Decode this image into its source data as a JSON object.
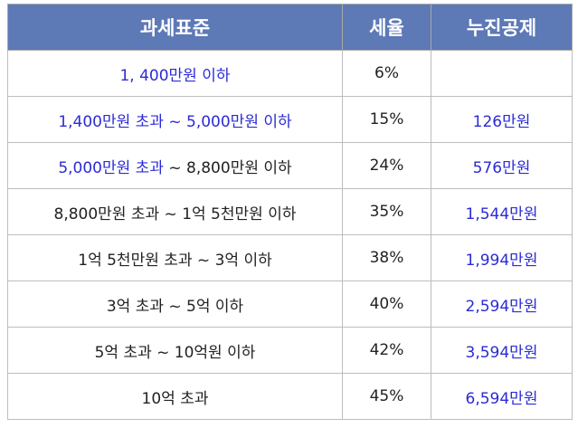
{
  "headers": [
    "과세표준",
    "세율",
    "누진공제"
  ],
  "colors": {
    "header_bg": "#5d79b6",
    "header_text": "#ffffff",
    "blue_text": "#2b2bd6",
    "dark_text": "#222222"
  },
  "rows": [
    {
      "bracket_parts": [
        {
          "text": "1, 400만원 이하",
          "color": "blue"
        }
      ],
      "rate": "6%",
      "deduction": ""
    },
    {
      "bracket_parts": [
        {
          "text": "1,400만원 초과 ~ 5,000만원 이하",
          "color": "blue"
        }
      ],
      "rate": "15%",
      "deduction": "126만원"
    },
    {
      "bracket_parts": [
        {
          "text": "5,000만원 초과",
          "color": "blue"
        },
        {
          "text": " ~ 8,800만원 이하",
          "color": "dark"
        }
      ],
      "rate": "24%",
      "deduction": "576만원"
    },
    {
      "bracket_parts": [
        {
          "text": "8,800만원 초과 ~ 1억 5천만원 이하",
          "color": "dark"
        }
      ],
      "rate": "35%",
      "deduction": "1,544만원"
    },
    {
      "bracket_parts": [
        {
          "text": "1억 5천만원 초과 ~ 3억 이하",
          "color": "dark"
        }
      ],
      "rate": "38%",
      "deduction": "1,994만원"
    },
    {
      "bracket_parts": [
        {
          "text": "3억 초과 ~ 5억 이하",
          "color": "dark"
        }
      ],
      "rate": "40%",
      "deduction": "2,594만원"
    },
    {
      "bracket_parts": [
        {
          "text": "5억 초과 ~ 10억원 이하",
          "color": "dark"
        }
      ],
      "rate": "42%",
      "deduction": "3,594만원"
    },
    {
      "bracket_parts": [
        {
          "text": "10억 초과",
          "color": "dark"
        }
      ],
      "rate": "45%",
      "deduction": "6,594만원"
    }
  ]
}
